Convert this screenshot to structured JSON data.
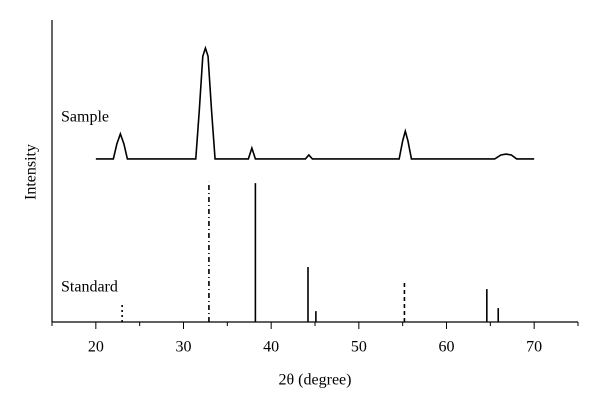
{
  "chart_data": {
    "type": "line",
    "xlabel": "2θ (degree)",
    "ylabel": "Intensity",
    "xlim": [
      15,
      75
    ],
    "ylim": [
      0,
      100
    ],
    "xticks": [
      20,
      30,
      40,
      50,
      60,
      70
    ],
    "xminorticks": [
      15,
      25,
      35,
      45,
      55,
      65,
      75
    ],
    "series": [
      {
        "name": "Sample",
        "kind": "curve",
        "color": "#000000",
        "x": [
          20,
          22.0,
          22.4,
          22.8,
          23.2,
          23.6,
          31.4,
          31.8,
          32.2,
          32.5,
          32.8,
          33.2,
          33.6,
          37.4,
          37.8,
          38.2,
          43.9,
          44.3,
          44.7,
          54.6,
          55.0,
          55.3,
          55.6,
          56.0,
          65.5,
          66.2,
          66.8,
          67.4,
          68.0,
          70
        ],
        "values": [
          54,
          54,
          59,
          62.3,
          59,
          54,
          54,
          70,
          88,
          90.7,
          88,
          70,
          54,
          54,
          57.6,
          54,
          54,
          55.3,
          54,
          54,
          60,
          63.2,
          60,
          54,
          54,
          55.3,
          55.6,
          55.3,
          54,
          54
        ]
      },
      {
        "name": "Standard",
        "kind": "stick",
        "color": "#000000",
        "x": [
          23.0,
          32.9,
          38.2,
          44.2,
          45.1,
          55.2,
          64.6,
          65.9
        ],
        "values": [
          6.3,
          46.4,
          46.0,
          18.2,
          3.6,
          12.9,
          10.9,
          4.6
        ],
        "styles": [
          "dotted",
          "dashdot",
          "solid",
          "solid",
          "solid",
          "dashed",
          "solid",
          "solid"
        ]
      }
    ]
  }
}
